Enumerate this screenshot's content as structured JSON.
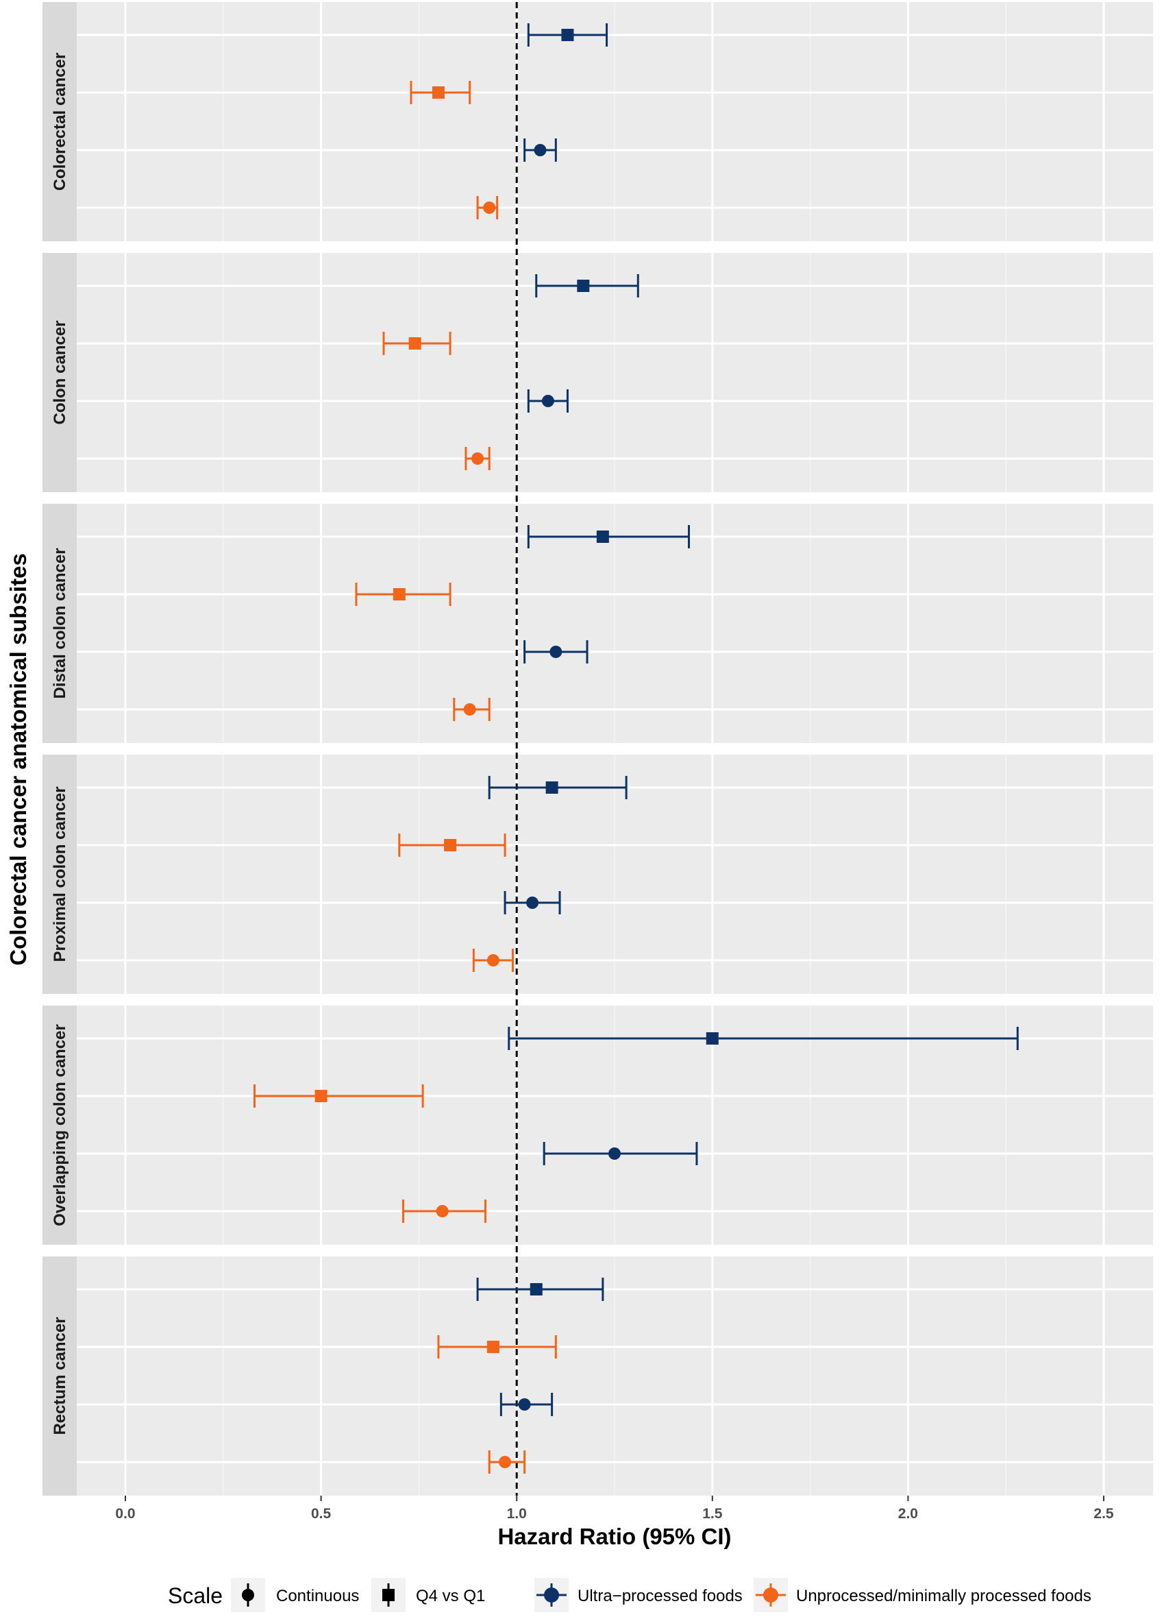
{
  "chart_data": {
    "type": "forest",
    "xlabel": "Hazard Ratio (95% CI)",
    "ylabel": "Colorectal cancer anatomical subsites",
    "xlim": [
      -0.25,
      2.62
    ],
    "x_ticks": [
      0.0,
      0.5,
      1.0,
      1.5,
      2.0,
      2.5
    ],
    "x_tick_labels": [
      "0.0",
      "0.5",
      "1.0",
      "1.5",
      "2.0",
      "2.5"
    ],
    "reference_line": 1.0,
    "grid": true,
    "legend_position": "bottom",
    "colors": {
      "ultra": "#0d3366",
      "unprocessed": "#f26519"
    },
    "legend": {
      "title": "Scale",
      "shape_entries": [
        {
          "label": "Continuous",
          "shape": "circle"
        },
        {
          "label": "Q4 vs Q1",
          "shape": "square"
        }
      ],
      "color_entries": [
        {
          "label": "Ultra−processed foods",
          "group": "ultra"
        },
        {
          "label": "Unprocessed/minimally processed foods",
          "group": "unprocessed"
        }
      ]
    },
    "panels": [
      {
        "name": "Colorectal cancer",
        "rows": [
          {
            "group": "ultra",
            "scale": "Q4 vs Q1",
            "hr": 1.13,
            "lo": 1.03,
            "hi": 1.23
          },
          {
            "group": "unprocessed",
            "scale": "Q4 vs Q1",
            "hr": 0.8,
            "lo": 0.73,
            "hi": 0.88
          },
          {
            "group": "ultra",
            "scale": "Continuous",
            "hr": 1.06,
            "lo": 1.02,
            "hi": 1.1
          },
          {
            "group": "unprocessed",
            "scale": "Continuous",
            "hr": 0.93,
            "lo": 0.9,
            "hi": 0.95
          }
        ]
      },
      {
        "name": "Colon cancer",
        "rows": [
          {
            "group": "ultra",
            "scale": "Q4 vs Q1",
            "hr": 1.17,
            "lo": 1.05,
            "hi": 1.31
          },
          {
            "group": "unprocessed",
            "scale": "Q4 vs Q1",
            "hr": 0.74,
            "lo": 0.66,
            "hi": 0.83
          },
          {
            "group": "ultra",
            "scale": "Continuous",
            "hr": 1.08,
            "lo": 1.03,
            "hi": 1.13
          },
          {
            "group": "unprocessed",
            "scale": "Continuous",
            "hr": 0.9,
            "lo": 0.87,
            "hi": 0.93
          }
        ]
      },
      {
        "name": "Distal colon cancer",
        "rows": [
          {
            "group": "ultra",
            "scale": "Q4 vs Q1",
            "hr": 1.22,
            "lo": 1.03,
            "hi": 1.44
          },
          {
            "group": "unprocessed",
            "scale": "Q4 vs Q1",
            "hr": 0.7,
            "lo": 0.59,
            "hi": 0.83
          },
          {
            "group": "ultra",
            "scale": "Continuous",
            "hr": 1.1,
            "lo": 1.02,
            "hi": 1.18
          },
          {
            "group": "unprocessed",
            "scale": "Continuous",
            "hr": 0.88,
            "lo": 0.84,
            "hi": 0.93
          }
        ]
      },
      {
        "name": "Proximal colon cancer",
        "rows": [
          {
            "group": "ultra",
            "scale": "Q4 vs Q1",
            "hr": 1.09,
            "lo": 0.93,
            "hi": 1.28
          },
          {
            "group": "unprocessed",
            "scale": "Q4 vs Q1",
            "hr": 0.83,
            "lo": 0.7,
            "hi": 0.97
          },
          {
            "group": "ultra",
            "scale": "Continuous",
            "hr": 1.04,
            "lo": 0.97,
            "hi": 1.11
          },
          {
            "group": "unprocessed",
            "scale": "Continuous",
            "hr": 0.94,
            "lo": 0.89,
            "hi": 0.99
          }
        ]
      },
      {
        "name": "Overlapping colon cancer",
        "rows": [
          {
            "group": "ultra",
            "scale": "Q4 vs Q1",
            "hr": 1.5,
            "lo": 0.98,
            "hi": 2.28
          },
          {
            "group": "unprocessed",
            "scale": "Q4 vs Q1",
            "hr": 0.5,
            "lo": 0.33,
            "hi": 0.76
          },
          {
            "group": "ultra",
            "scale": "Continuous",
            "hr": 1.25,
            "lo": 1.07,
            "hi": 1.46
          },
          {
            "group": "unprocessed",
            "scale": "Continuous",
            "hr": 0.81,
            "lo": 0.71,
            "hi": 0.92
          }
        ]
      },
      {
        "name": "Rectum cancer",
        "rows": [
          {
            "group": "ultra",
            "scale": "Q4 vs Q1",
            "hr": 1.05,
            "lo": 0.9,
            "hi": 1.22
          },
          {
            "group": "unprocessed",
            "scale": "Q4 vs Q1",
            "hr": 0.94,
            "lo": 0.8,
            "hi": 1.1
          },
          {
            "group": "ultra",
            "scale": "Continuous",
            "hr": 1.02,
            "lo": 0.96,
            "hi": 1.09
          },
          {
            "group": "unprocessed",
            "scale": "Continuous",
            "hr": 0.97,
            "lo": 0.93,
            "hi": 1.02
          }
        ]
      }
    ]
  }
}
